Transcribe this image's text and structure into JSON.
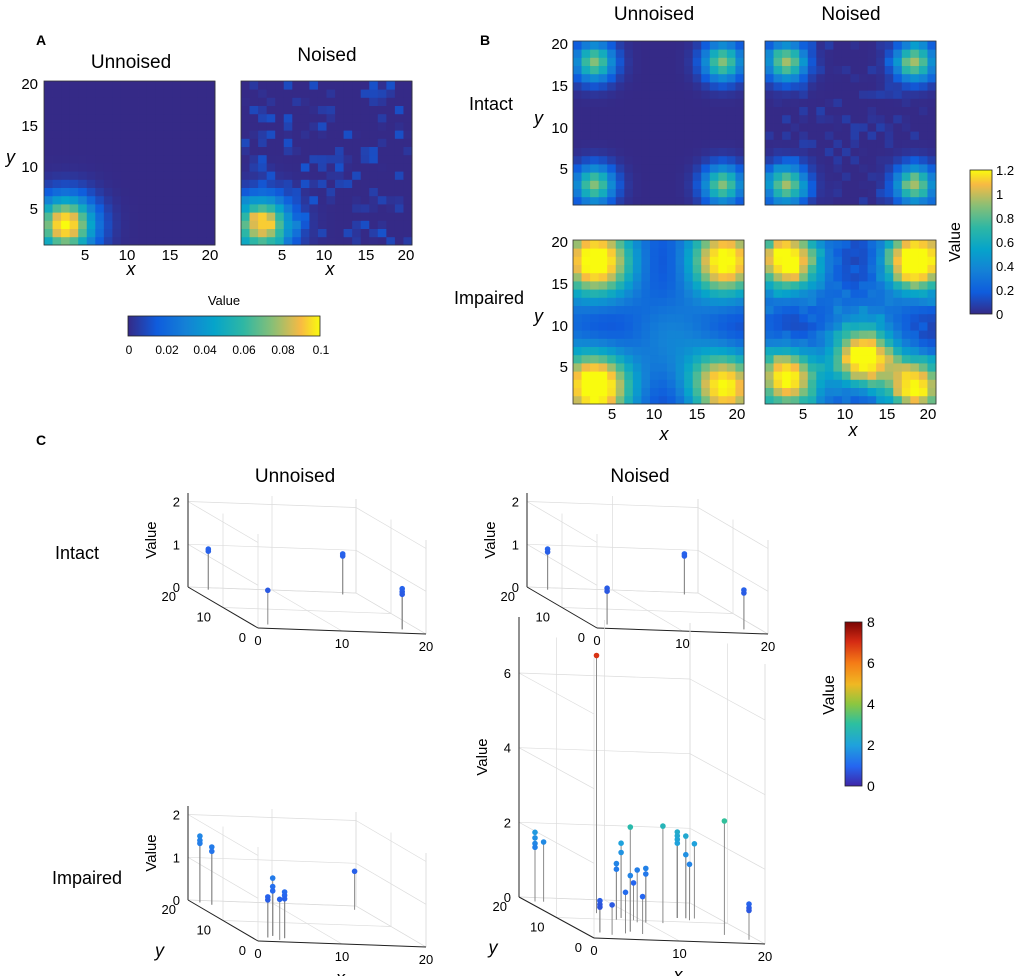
{
  "panels": {
    "A": {
      "letter": "A",
      "titles": [
        "Unnoised",
        "Noised"
      ],
      "x_label": "x",
      "y_label": "y",
      "x_ticks": [
        "5",
        "10",
        "15",
        "20"
      ],
      "y_ticks": [
        "5",
        "10",
        "15",
        "20"
      ],
      "colorbar": {
        "label": "Value",
        "ticks": [
          "0",
          "0.02",
          "0.04",
          "0.06",
          "0.08",
          "0.1"
        ]
      }
    },
    "B": {
      "letter": "B",
      "titles": [
        "Unnoised",
        "Noised"
      ],
      "rows": [
        "Intact",
        "Impaired"
      ],
      "x_label": "x",
      "y_label": "y",
      "x_ticks": [
        "5",
        "10",
        "15",
        "20"
      ],
      "y_ticks": [
        "5",
        "10",
        "15",
        "20"
      ],
      "colorbar": {
        "label": "Value",
        "ticks": [
          "1.2",
          "1",
          "0.8",
          "0.6",
          "0.4",
          "0.2",
          "0"
        ]
      }
    },
    "C": {
      "letter": "C",
      "titles": [
        "Unnoised",
        "Noised"
      ],
      "rows": [
        "Intact",
        "Impaired"
      ],
      "x_label": "x",
      "y_label": "y",
      "z_label": "Value",
      "colorbar": {
        "label": "Value",
        "ticks": [
          "8",
          "6",
          "4",
          "2",
          "0"
        ]
      }
    }
  },
  "chart_data": [
    {
      "type": "heatmap",
      "title": "Unnoised",
      "panel": "A",
      "xlabel": "x",
      "ylabel": "y",
      "xlim": [
        1,
        20
      ],
      "ylim": [
        1,
        20
      ],
      "peaks": [
        {
          "x": 3,
          "y": 3,
          "value": 0.1
        }
      ],
      "colorbar_range": [
        0,
        0.1
      ]
    },
    {
      "type": "heatmap",
      "title": "Noised",
      "panel": "A",
      "xlabel": "x",
      "ylabel": "y",
      "xlim": [
        1,
        20
      ],
      "ylim": [
        1,
        20
      ],
      "peaks": [
        {
          "x": 3,
          "y": 3,
          "value": 0.09
        }
      ],
      "colorbar_range": [
        0,
        0.1
      ]
    },
    {
      "type": "heatmap",
      "title": "Intact / Unnoised",
      "panel": "B",
      "xlim": [
        1,
        20
      ],
      "ylim": [
        1,
        20
      ],
      "peaks": [
        {
          "x": 3,
          "y": 3,
          "value": 0.85
        },
        {
          "x": 18,
          "y": 3,
          "value": 0.85
        },
        {
          "x": 3,
          "y": 18,
          "value": 0.85
        },
        {
          "x": 18,
          "y": 18,
          "value": 0.85
        }
      ],
      "colorbar_range": [
        0,
        1.2
      ]
    },
    {
      "type": "heatmap",
      "title": "Intact / Noised",
      "panel": "B",
      "xlim": [
        1,
        20
      ],
      "ylim": [
        1,
        20
      ],
      "peaks": [
        {
          "x": 3,
          "y": 3,
          "value": 0.9
        },
        {
          "x": 18,
          "y": 3,
          "value": 0.9
        },
        {
          "x": 3,
          "y": 18,
          "value": 0.9
        },
        {
          "x": 18,
          "y": 18,
          "value": 0.9
        }
      ],
      "colorbar_range": [
        0,
        1.2
      ]
    },
    {
      "type": "heatmap",
      "title": "Impaired / Unnoised",
      "panel": "B",
      "xlim": [
        1,
        20
      ],
      "ylim": [
        1,
        20
      ],
      "peaks": [
        {
          "x": 3,
          "y": 3,
          "value": 1.1
        },
        {
          "x": 18,
          "y": 3,
          "value": 0.95
        },
        {
          "x": 3,
          "y": 18,
          "value": 1.0
        },
        {
          "x": 18,
          "y": 18,
          "value": 0.95
        }
      ],
      "colorbar_range": [
        0,
        1.2
      ]
    },
    {
      "type": "heatmap",
      "title": "Impaired / Noised",
      "panel": "B",
      "xlim": [
        1,
        20
      ],
      "ylim": [
        1,
        20
      ],
      "peaks": [
        {
          "x": 3,
          "y": 4,
          "value": 1.0
        },
        {
          "x": 18,
          "y": 3,
          "value": 0.9
        },
        {
          "x": 3,
          "y": 18,
          "value": 0.95
        },
        {
          "x": 18,
          "y": 18,
          "value": 1.15
        },
        {
          "x": 12,
          "y": 6,
          "value": 1.0
        }
      ],
      "colorbar_range": [
        0,
        1.2
      ]
    },
    {
      "type": "scatter",
      "title": "Intact / Unnoised",
      "panel": "C",
      "xlim": [
        0,
        20
      ],
      "ylim": [
        0,
        20
      ],
      "zlim": [
        0,
        2
      ],
      "x_ticks": [
        0,
        10,
        20
      ],
      "y_ticks": [
        0,
        10,
        20
      ],
      "z_ticks": [
        0,
        1,
        2
      ],
      "points": [
        {
          "x": 2,
          "y": 19,
          "z": 0.95
        },
        {
          "x": 2,
          "y": 19,
          "z": 0.9
        },
        {
          "x": 18,
          "y": 19,
          "z": 0.95
        },
        {
          "x": 18,
          "y": 19,
          "z": 0.9
        },
        {
          "x": 2,
          "y": 2,
          "z": 0.8
        },
        {
          "x": 18,
          "y": 2,
          "z": 0.95
        },
        {
          "x": 18,
          "y": 2,
          "z": 0.88
        },
        {
          "x": 18,
          "y": 2,
          "z": 0.82
        }
      ]
    },
    {
      "type": "scatter",
      "title": "Intact / Noised",
      "panel": "C",
      "xlim": [
        0,
        20
      ],
      "ylim": [
        0,
        20
      ],
      "zlim": [
        0,
        2
      ],
      "x_ticks": [
        0,
        10,
        20
      ],
      "y_ticks": [
        0,
        10,
        20
      ],
      "z_ticks": [
        0,
        1,
        2
      ],
      "points": [
        {
          "x": 2,
          "y": 19,
          "z": 0.95
        },
        {
          "x": 2,
          "y": 19,
          "z": 0.88
        },
        {
          "x": 18,
          "y": 19,
          "z": 0.95
        },
        {
          "x": 18,
          "y": 19,
          "z": 0.9
        },
        {
          "x": 2,
          "y": 2,
          "z": 0.85
        },
        {
          "x": 2,
          "y": 2,
          "z": 0.78
        },
        {
          "x": 18,
          "y": 2,
          "z": 0.92
        },
        {
          "x": 18,
          "y": 2,
          "z": 0.85
        }
      ]
    },
    {
      "type": "scatter",
      "title": "Impaired / Unnoised",
      "panel": "C",
      "xlim": [
        0,
        20
      ],
      "ylim": [
        0,
        20
      ],
      "zlim": [
        0,
        2
      ],
      "x_ticks": [
        0,
        10,
        20
      ],
      "y_ticks": [
        0,
        10,
        20
      ],
      "z_ticks": [
        0,
        1,
        2
      ],
      "points": [
        {
          "x": 1,
          "y": 19,
          "z": 1.55
        },
        {
          "x": 1,
          "y": 19,
          "z": 1.45
        },
        {
          "x": 1,
          "y": 19,
          "z": 1.38
        },
        {
          "x": 2,
          "y": 18,
          "z": 1.35
        },
        {
          "x": 2,
          "y": 18,
          "z": 1.25
        },
        {
          "x": 3,
          "y": 3,
          "z": 1.35
        },
        {
          "x": 3,
          "y": 3,
          "z": 1.15
        },
        {
          "x": 3,
          "y": 3,
          "z": 1.05
        },
        {
          "x": 2,
          "y": 2,
          "z": 0.95
        },
        {
          "x": 2,
          "y": 2,
          "z": 0.88
        },
        {
          "x": 4,
          "y": 2,
          "z": 1.08
        },
        {
          "x": 4,
          "y": 2,
          "z": 1.0
        },
        {
          "x": 4,
          "y": 2,
          "z": 0.92
        },
        {
          "x": 3,
          "y": 1,
          "z": 0.95
        },
        {
          "x": 19,
          "y": 18,
          "z": 0.9
        }
      ]
    },
    {
      "type": "scatter",
      "title": "Impaired / Noised",
      "panel": "C",
      "xlim": [
        0,
        20
      ],
      "ylim": [
        0,
        20
      ],
      "zlim": [
        0,
        8
      ],
      "x_ticks": [
        0,
        10,
        20
      ],
      "y_ticks": [
        0,
        10,
        20
      ],
      "z_ticks": [
        0,
        2,
        4,
        6
      ],
      "points": [
        {
          "x": 1,
          "y": 18,
          "z": 1.85
        },
        {
          "x": 1,
          "y": 18,
          "z": 1.7
        },
        {
          "x": 1,
          "y": 18,
          "z": 1.55
        },
        {
          "x": 1,
          "y": 18,
          "z": 1.45
        },
        {
          "x": 2,
          "y": 18,
          "z": 1.6
        },
        {
          "x": 2,
          "y": 3,
          "z": 0.85
        },
        {
          "x": 2,
          "y": 3,
          "z": 0.75
        },
        {
          "x": 2,
          "y": 3,
          "z": 0.68
        },
        {
          "x": 3,
          "y": 2,
          "z": 0.8
        },
        {
          "x": 6,
          "y": 13,
          "z": 6.9
        },
        {
          "x": 8,
          "y": 11,
          "z": 2.0
        },
        {
          "x": 8,
          "y": 11,
          "z": 1.75
        },
        {
          "x": 7,
          "y": 10,
          "z": 1.5
        },
        {
          "x": 7,
          "y": 10,
          "z": 1.35
        },
        {
          "x": 9,
          "y": 9,
          "z": 1.4
        },
        {
          "x": 9,
          "y": 10,
          "z": 1.0
        },
        {
          "x": 6,
          "y": 4,
          "z": 2.8
        },
        {
          "x": 6,
          "y": 4,
          "z": 1.5
        },
        {
          "x": 5,
          "y": 3,
          "z": 1.1
        },
        {
          "x": 7,
          "y": 3,
          "z": 1.0
        },
        {
          "x": 10,
          "y": 9,
          "z": 1.45
        },
        {
          "x": 10,
          "y": 9,
          "z": 1.3
        },
        {
          "x": 12,
          "y": 9,
          "z": 2.6
        },
        {
          "x": 15,
          "y": 12,
          "z": 2.3
        },
        {
          "x": 15,
          "y": 12,
          "z": 2.2
        },
        {
          "x": 15,
          "y": 12,
          "z": 2.1
        },
        {
          "x": 15,
          "y": 12,
          "z": 2.0
        },
        {
          "x": 16,
          "y": 12,
          "z": 2.2
        },
        {
          "x": 16,
          "y": 12,
          "z": 1.7
        },
        {
          "x": 16,
          "y": 11,
          "z": 1.5
        },
        {
          "x": 17,
          "y": 12,
          "z": 2.0
        },
        {
          "x": 17,
          "y": 4,
          "z": 3.05
        },
        {
          "x": 19,
          "y": 2,
          "z": 0.95
        },
        {
          "x": 19,
          "y": 2,
          "z": 0.85
        },
        {
          "x": 19,
          "y": 2,
          "z": 0.78
        }
      ]
    }
  ]
}
